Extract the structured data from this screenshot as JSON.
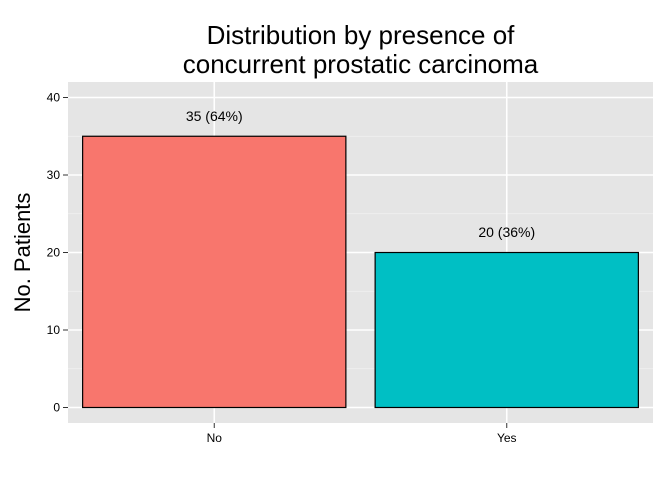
{
  "chart_data": {
    "type": "bar",
    "title_lines": [
      "Distribution by presence of",
      "concurrent prostatic carcinoma"
    ],
    "xlabel": "",
    "ylabel": "No. Patients",
    "categories": [
      "No",
      "Yes"
    ],
    "values": [
      35,
      20
    ],
    "data_labels": [
      "35 (64%)",
      "20 (36%)"
    ],
    "colors": [
      "#F8766D",
      "#00BFC4"
    ],
    "ylim": [
      -2,
      42
    ],
    "yticks": [
      0,
      10,
      20,
      30,
      40
    ],
    "ytick_labels": [
      "0",
      "10",
      "20",
      "30",
      "40"
    ],
    "grid": true,
    "background": "#E5E5E5"
  }
}
